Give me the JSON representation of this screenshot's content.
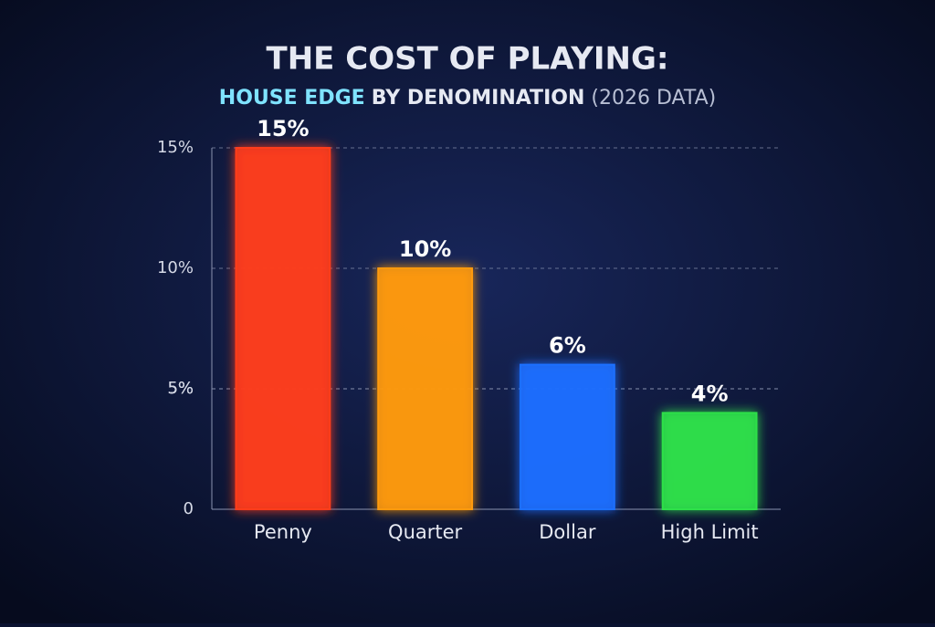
{
  "chart_data": {
    "type": "bar",
    "title": "THE COST OF PLAYING:",
    "subtitle": [
      "HOUSE EDGE",
      "BY DENOMINATION",
      "(2026 DATA)"
    ],
    "categories": [
      "Penny",
      "Quarter",
      "Dollar",
      "High Limit"
    ],
    "values": [
      15,
      10,
      6,
      4
    ],
    "value_labels": [
      "15%",
      "10%",
      "6%",
      "4%"
    ],
    "colors": [
      "#ff3d1a",
      "#ff9a0a",
      "#1f6fff",
      "#2ee04a"
    ],
    "ylim": [
      0,
      15
    ],
    "yticks": [
      {
        "value": 15,
        "label": "15%"
      },
      {
        "value": 10,
        "label": "10%"
      },
      {
        "value": 5,
        "label": "5%"
      },
      {
        "value": 5,
        "label": "5%"
      },
      {
        "value": 5,
        "label": "5%"
      },
      0
    ],
    "grid": true
  }
}
